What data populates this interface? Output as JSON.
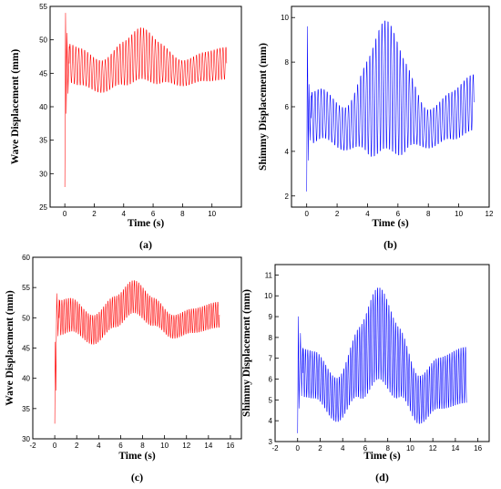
{
  "chart_data": [
    {
      "id": "a",
      "type": "line",
      "panel_label": "(a)",
      "xlabel": "Time (s)",
      "ylabel": "Wave Displacement (mm)",
      "xlim": [
        -1,
        12
      ],
      "ylim": [
        25,
        55
      ],
      "xticks": [
        0,
        2,
        4,
        6,
        8,
        10
      ],
      "yticks": [
        25,
        30,
        35,
        40,
        45,
        50,
        55
      ],
      "color": "#ff0000",
      "series": [
        {
          "x_range": [
            0,
            11
          ],
          "initial_transient": [
            [
              0,
              28
            ],
            [
              0.05,
              54
            ],
            [
              0.1,
              39
            ],
            [
              0.15,
              51
            ],
            [
              0.22,
              42
            ],
            [
              0.3,
              49
            ]
          ],
          "mean_curve": [
            [
              0.3,
              46.5
            ],
            [
              1,
              46.0
            ],
            [
              2.5,
              44.5
            ],
            [
              4,
              46.5
            ],
            [
              5.2,
              48.0
            ],
            [
              6.5,
              46.5
            ],
            [
              8,
              45.0
            ],
            [
              9.5,
              46.0
            ],
            [
              11,
              46.5
            ]
          ],
          "amplitude_curve": [
            [
              0.3,
              3.0
            ],
            [
              2.5,
              2.5
            ],
            [
              5.2,
              4.0
            ],
            [
              8,
              2.0
            ],
            [
              11,
              2.5
            ]
          ],
          "oscillation_frequency_hz": 5.0
        }
      ]
    },
    {
      "id": "b",
      "type": "line",
      "panel_label": "(b)",
      "xlabel": "Time (s)",
      "ylabel": "Shimmy Displacement (mm)",
      "xlim": [
        -1,
        12
      ],
      "ylim": [
        1.5,
        10.5
      ],
      "xticks": [
        0,
        2,
        4,
        6,
        8,
        10,
        12
      ],
      "yticks": [
        2,
        4,
        6,
        8,
        10
      ],
      "color": "#0000ff",
      "series": [
        {
          "x_range": [
            0,
            11
          ],
          "initial_transient": [
            [
              0,
              2.2
            ],
            [
              0.05,
              9.6
            ],
            [
              0.1,
              3.6
            ],
            [
              0.15,
              7.0
            ],
            [
              0.22,
              4.5
            ],
            [
              0.3,
              6.5
            ]
          ],
          "mean_curve": [
            [
              0.3,
              5.5
            ],
            [
              1,
              5.7
            ],
            [
              2.5,
              5.0
            ],
            [
              4,
              6.0
            ],
            [
              5.2,
              7.0
            ],
            [
              6.5,
              6.0
            ],
            [
              8,
              5.0
            ],
            [
              9.5,
              5.6
            ],
            [
              11,
              6.2
            ]
          ],
          "amplitude_curve": [
            [
              0.3,
              1.2
            ],
            [
              2.5,
              1.0
            ],
            [
              5.2,
              3.0
            ],
            [
              8,
              0.9
            ],
            [
              11,
              1.3
            ]
          ],
          "oscillation_frequency_hz": 5.0
        }
      ]
    },
    {
      "id": "c",
      "type": "line",
      "panel_label": "(c)",
      "xlabel": "Time (s)",
      "ylabel": "Wave Displacement (mm)",
      "xlim": [
        -2,
        17
      ],
      "ylim": [
        30,
        60
      ],
      "xticks": [
        -2,
        0,
        2,
        4,
        6,
        8,
        10,
        12,
        14,
        16
      ],
      "yticks": [
        30,
        35,
        40,
        45,
        50,
        55,
        60
      ],
      "color": "#ff0000",
      "series": [
        {
          "x_range": [
            0,
            15
          ],
          "initial_transient": [
            [
              0,
              32.5
            ],
            [
              0.05,
              46
            ],
            [
              0.1,
              38
            ],
            [
              0.18,
              54
            ],
            [
              0.3,
              47
            ],
            [
              0.4,
              53
            ]
          ],
          "mean_curve": [
            [
              0.4,
              50.0
            ],
            [
              1.5,
              50.5
            ],
            [
              3.5,
              48.0
            ],
            [
              5.5,
              51.0
            ],
            [
              7.2,
              53.5
            ],
            [
              9,
              51.0
            ],
            [
              10.8,
              48.5
            ],
            [
              12.5,
              49.5
            ],
            [
              15,
              50.5
            ]
          ],
          "amplitude_curve": [
            [
              0.4,
              3.0
            ],
            [
              3.5,
              2.5
            ],
            [
              7.2,
              2.8
            ],
            [
              10.8,
              2.0
            ],
            [
              15,
              2.2
            ]
          ],
          "oscillation_frequency_hz": 5.0
        }
      ]
    },
    {
      "id": "d",
      "type": "line",
      "panel_label": "(d)",
      "xlabel": "Time (s)",
      "ylabel": "Shimmy Displacement (mm)",
      "xlim": [
        -2,
        17
      ],
      "ylim": [
        3,
        11.5
      ],
      "xticks": [
        -2,
        0,
        2,
        4,
        6,
        8,
        10,
        12,
        14,
        16
      ],
      "yticks": [
        3,
        4,
        5,
        6,
        7,
        8,
        9,
        10,
        11
      ],
      "color": "#0000ff",
      "series": [
        {
          "x_range": [
            0,
            15
          ],
          "initial_transient": [
            [
              0,
              3.4
            ],
            [
              0.06,
              9.0
            ],
            [
              0.12,
              4.6
            ],
            [
              0.25,
              8.2
            ],
            [
              0.35,
              5.2
            ],
            [
              0.45,
              7.5
            ]
          ],
          "mean_curve": [
            [
              0.45,
              6.3
            ],
            [
              1.5,
              6.2
            ],
            [
              3.5,
              5.0
            ],
            [
              5.5,
              6.8
            ],
            [
              7.2,
              8.2
            ],
            [
              9,
              6.8
            ],
            [
              10.8,
              5.0
            ],
            [
              12.5,
              5.8
            ],
            [
              15,
              6.2
            ]
          ],
          "amplitude_curve": [
            [
              0.45,
              1.2
            ],
            [
              3.5,
              1.1
            ],
            [
              7.2,
              2.3
            ],
            [
              10.8,
              1.2
            ],
            [
              15,
              1.4
            ]
          ],
          "oscillation_frequency_hz": 5.0
        }
      ]
    }
  ]
}
